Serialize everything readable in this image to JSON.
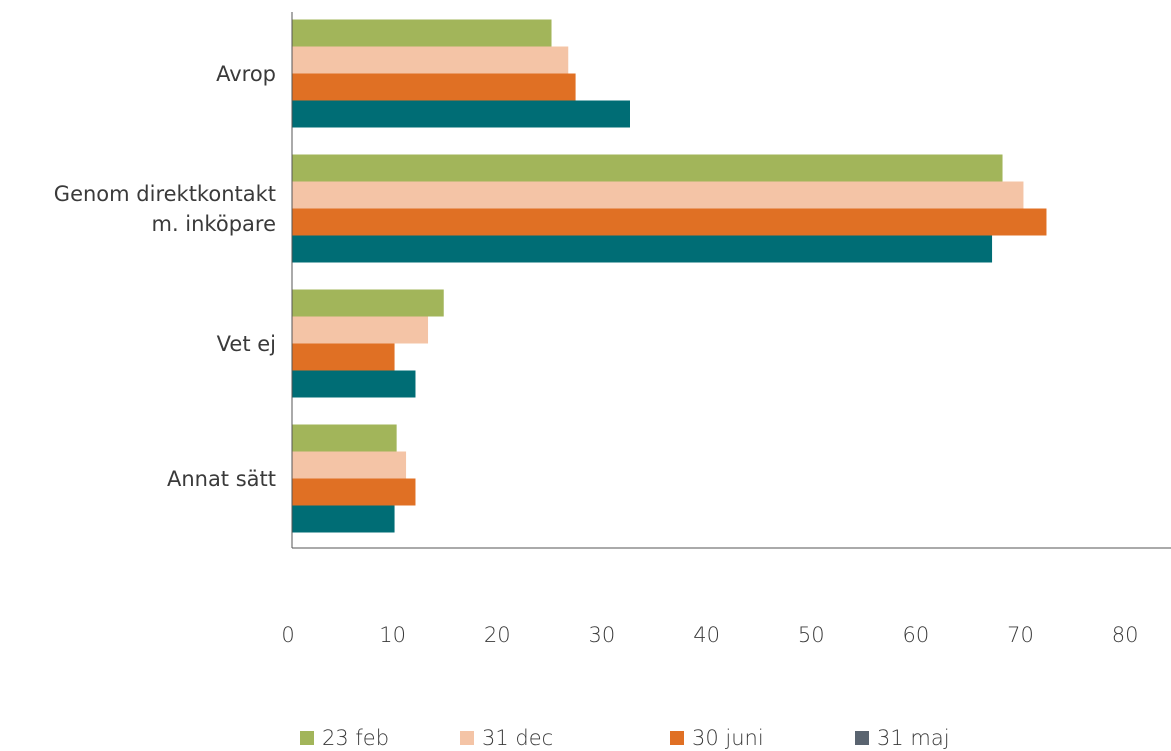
{
  "chart_data": {
    "type": "bar",
    "orientation": "horizontal",
    "categories": [
      "Avrop",
      "Genom direktkontakt\nm. inköpare",
      "Vet ej",
      "Annat sätt"
    ],
    "series": [
      {
        "name": "23 feb",
        "color": "#a2b55a",
        "legend_color": "#a2b55a",
        "values": [
          24.8,
          67.9,
          14.5,
          10.0
        ]
      },
      {
        "name": "31 dec",
        "color": "#f4c4a6",
        "legend_color": "#f4c4a6",
        "values": [
          26.4,
          69.9,
          13.0,
          10.9
        ]
      },
      {
        "name": "30 juni",
        "color": "#e07024",
        "legend_color": "#e07024",
        "values": [
          27.1,
          72.1,
          9.8,
          11.8
        ]
      },
      {
        "name": "31 maj",
        "color": "#006d75",
        "legend_color": "#5a6470",
        "values": [
          32.3,
          66.9,
          11.8,
          9.8
        ]
      }
    ],
    "xlim": [
      0,
      84
    ],
    "xticks": [
      0,
      10,
      20,
      30,
      40,
      50,
      60,
      70,
      80
    ],
    "legend": "bottom"
  }
}
